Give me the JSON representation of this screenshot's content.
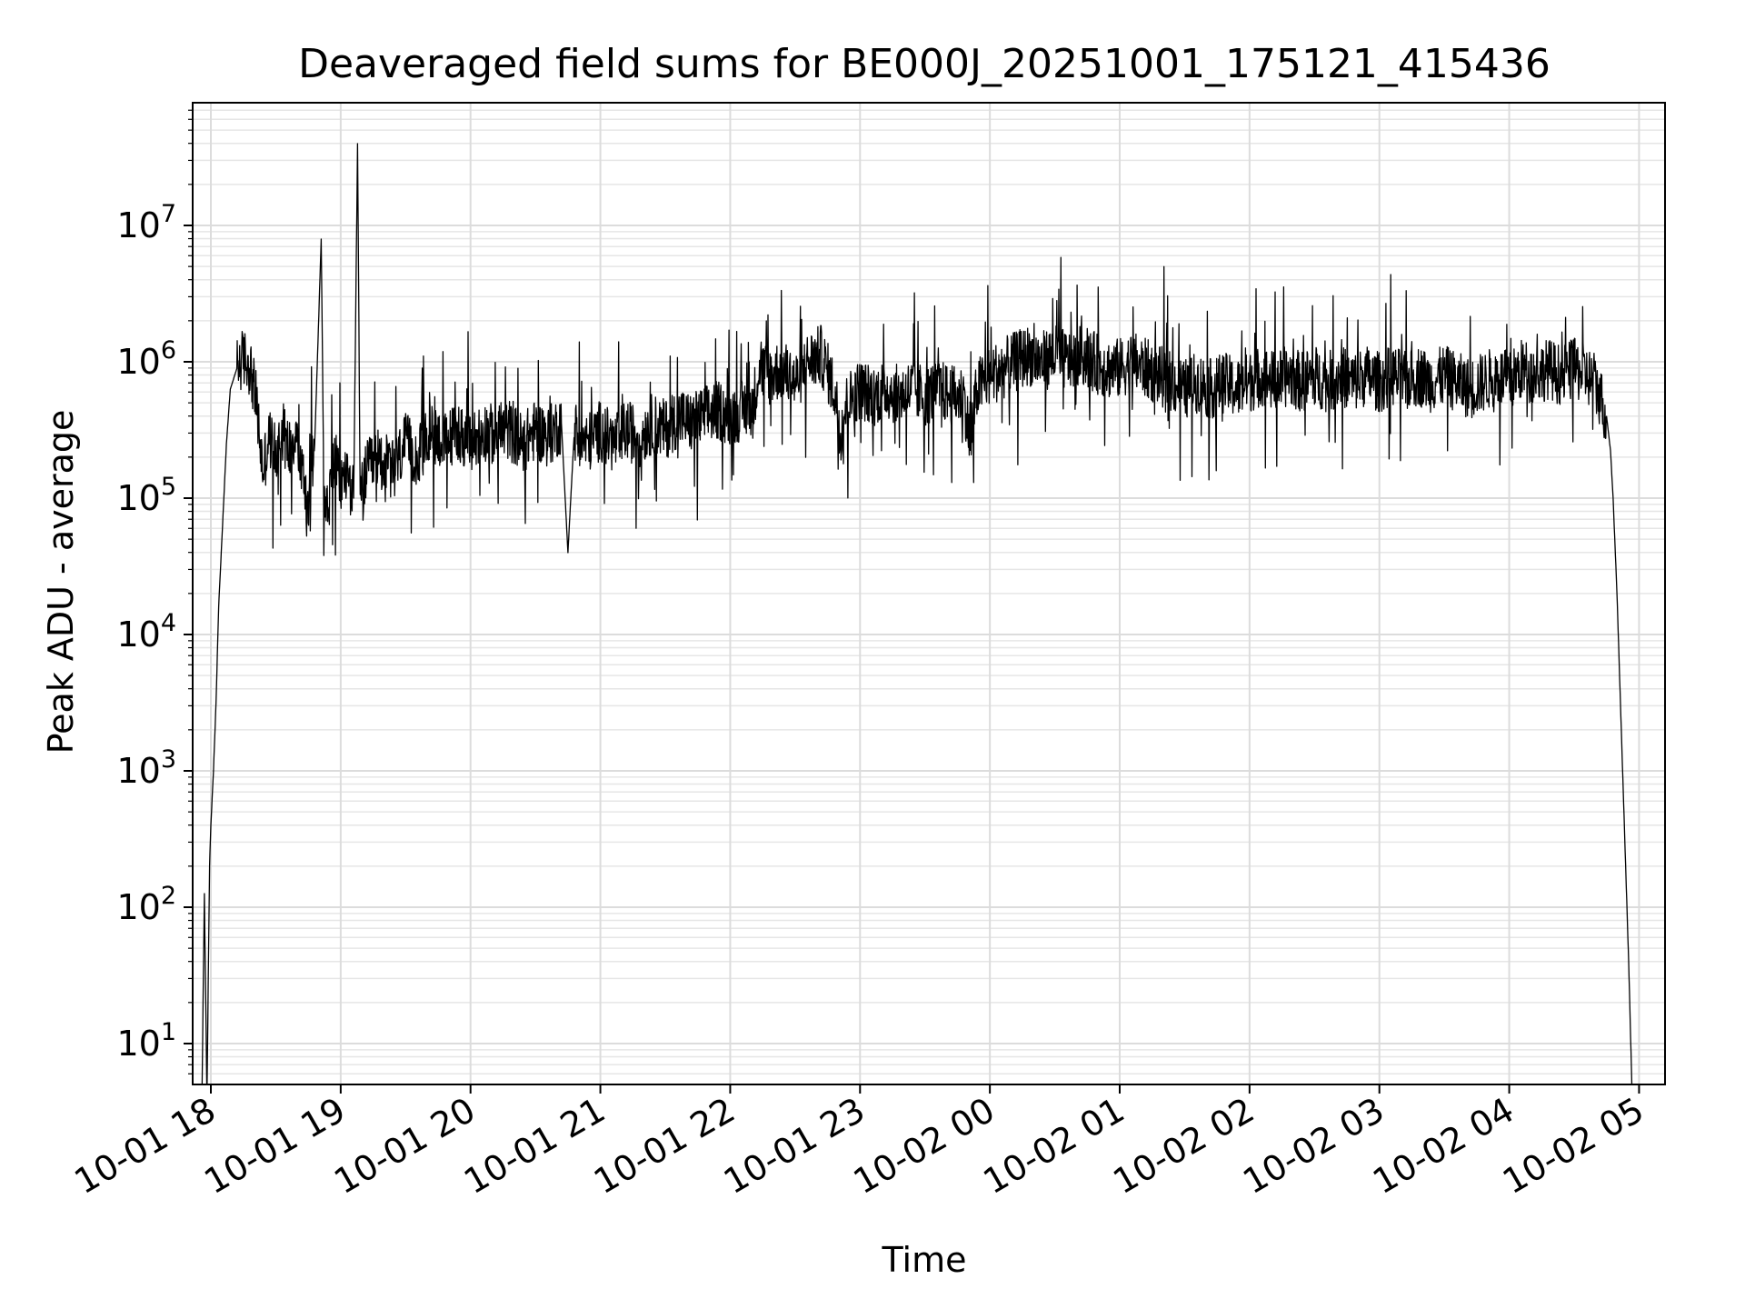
{
  "chart_data": {
    "type": "line",
    "title": "Deaveraged field sums for BE000J_20251001_175121_415436",
    "xlabel": "Time",
    "ylabel": "Peak ADU - average",
    "yscale": "log",
    "ylim_exponent": [
      0.7,
      7.9
    ],
    "xlim_hours": [
      17.86,
      29.2
    ],
    "grid": true,
    "x_ticks": [
      {
        "hour": 18,
        "label": "10-01 18"
      },
      {
        "hour": 19,
        "label": "10-01 19"
      },
      {
        "hour": 20,
        "label": "10-01 20"
      },
      {
        "hour": 21,
        "label": "10-01 21"
      },
      {
        "hour": 22,
        "label": "10-01 22"
      },
      {
        "hour": 23,
        "label": "10-01 23"
      },
      {
        "hour": 24,
        "label": "10-02 00"
      },
      {
        "hour": 25,
        "label": "10-02 01"
      },
      {
        "hour": 26,
        "label": "10-02 02"
      },
      {
        "hour": 27,
        "label": "10-02 03"
      },
      {
        "hour": 28,
        "label": "10-02 04"
      },
      {
        "hour": 29,
        "label": "10-02 05"
      }
    ],
    "y_ticks": [
      {
        "exp": 1,
        "base": "10",
        "sup": "1"
      },
      {
        "exp": 2,
        "base": "10",
        "sup": "2"
      },
      {
        "exp": 3,
        "base": "10",
        "sup": "3"
      },
      {
        "exp": 4,
        "base": "10",
        "sup": "4"
      },
      {
        "exp": 5,
        "base": "10",
        "sup": "5"
      },
      {
        "exp": 6,
        "base": "10",
        "sup": "6"
      },
      {
        "exp": 7,
        "base": "10",
        "sup": "7"
      }
    ],
    "series": [
      {
        "name": "field sums",
        "color": "#000000",
        "points_log10": [
          [
            17.93,
            0.5
          ],
          [
            17.95,
            2.1
          ],
          [
            17.97,
            0.6
          ],
          [
            17.99,
            2.3
          ],
          [
            18.0,
            2.6
          ],
          [
            18.02,
            3.0
          ],
          [
            18.04,
            3.5
          ],
          [
            18.06,
            4.2
          ],
          [
            18.08,
            4.6
          ],
          [
            18.1,
            5.0
          ],
          [
            18.12,
            5.4
          ],
          [
            18.15,
            5.8
          ],
          [
            18.2,
            5.95
          ],
          [
            18.25,
            6.03
          ],
          [
            18.3,
            5.98
          ],
          [
            18.35,
            5.7
          ],
          [
            18.4,
            5.2
          ],
          [
            18.45,
            5.45
          ],
          [
            18.5,
            5.3
          ],
          [
            18.55,
            5.5
          ],
          [
            18.6,
            5.35
          ],
          [
            18.65,
            5.5
          ],
          [
            18.7,
            5.2
          ],
          [
            18.75,
            5.0
          ],
          [
            18.8,
            5.4
          ],
          [
            18.85,
            6.9
          ],
          [
            18.87,
            5.1
          ],
          [
            18.9,
            4.9
          ],
          [
            18.95,
            5.3
          ],
          [
            19.0,
            5.1
          ],
          [
            19.05,
            5.2
          ],
          [
            19.1,
            5.0
          ],
          [
            19.13,
            7.6
          ],
          [
            19.15,
            5.0
          ],
          [
            19.2,
            5.2
          ],
          [
            19.3,
            5.3
          ],
          [
            19.4,
            5.2
          ],
          [
            19.5,
            5.4
          ],
          [
            19.6,
            5.3
          ],
          [
            19.7,
            5.5
          ],
          [
            19.8,
            5.4
          ],
          [
            19.9,
            5.5
          ],
          [
            20.0,
            5.4
          ],
          [
            20.1,
            5.5
          ],
          [
            20.2,
            5.45
          ],
          [
            20.3,
            5.5
          ],
          [
            20.4,
            5.4
          ],
          [
            20.5,
            5.5
          ],
          [
            20.6,
            5.45
          ],
          [
            20.7,
            5.55
          ],
          [
            20.75,
            4.6
          ],
          [
            20.8,
            5.5
          ],
          [
            20.9,
            5.4
          ],
          [
            21.0,
            5.5
          ],
          [
            21.1,
            5.4
          ],
          [
            21.2,
            5.5
          ],
          [
            21.3,
            5.45
          ],
          [
            21.4,
            5.55
          ],
          [
            21.5,
            5.5
          ],
          [
            21.6,
            5.6
          ],
          [
            21.7,
            5.55
          ],
          [
            21.8,
            5.6
          ],
          [
            21.9,
            5.65
          ],
          [
            22.0,
            5.6
          ],
          [
            22.1,
            5.65
          ],
          [
            22.18,
            5.7
          ],
          [
            22.22,
            5.95
          ],
          [
            22.3,
            5.9
          ],
          [
            22.4,
            5.95
          ],
          [
            22.5,
            5.85
          ],
          [
            22.6,
            6.0
          ],
          [
            22.7,
            6.05
          ],
          [
            22.8,
            5.8
          ],
          [
            22.85,
            5.5
          ],
          [
            22.9,
            5.7
          ],
          [
            23.0,
            5.8
          ],
          [
            23.1,
            5.75
          ],
          [
            23.2,
            5.8
          ],
          [
            23.3,
            5.75
          ],
          [
            23.4,
            5.8
          ],
          [
            23.5,
            5.75
          ],
          [
            23.6,
            5.8
          ],
          [
            23.7,
            5.75
          ],
          [
            23.8,
            5.75
          ],
          [
            23.85,
            5.4
          ],
          [
            23.9,
            5.8
          ],
          [
            24.0,
            5.9
          ],
          [
            24.1,
            5.95
          ],
          [
            24.2,
            6.0
          ],
          [
            24.3,
            6.05
          ],
          [
            24.4,
            6.0
          ],
          [
            24.5,
            6.05
          ],
          [
            24.6,
            6.0
          ],
          [
            24.7,
            6.05
          ],
          [
            24.8,
            6.0
          ],
          [
            24.9,
            5.95
          ],
          [
            25.0,
            5.95
          ],
          [
            25.1,
            6.0
          ],
          [
            25.2,
            5.95
          ],
          [
            25.3,
            5.9
          ],
          [
            25.4,
            5.85
          ],
          [
            25.5,
            5.8
          ],
          [
            25.6,
            5.85
          ],
          [
            25.7,
            5.8
          ],
          [
            25.8,
            5.85
          ],
          [
            25.9,
            5.8
          ],
          [
            26.0,
            5.85
          ],
          [
            26.1,
            5.9
          ],
          [
            26.2,
            5.85
          ],
          [
            26.3,
            5.9
          ],
          [
            26.4,
            5.85
          ],
          [
            26.5,
            5.9
          ],
          [
            26.6,
            5.85
          ],
          [
            26.7,
            5.9
          ],
          [
            26.8,
            5.85
          ],
          [
            26.9,
            5.9
          ],
          [
            27.0,
            5.85
          ],
          [
            27.1,
            5.9
          ],
          [
            27.2,
            5.85
          ],
          [
            27.3,
            5.9
          ],
          [
            27.4,
            5.85
          ],
          [
            27.5,
            5.9
          ],
          [
            27.6,
            5.85
          ],
          [
            27.7,
            5.8
          ],
          [
            27.8,
            5.85
          ],
          [
            27.9,
            5.9
          ],
          [
            28.0,
            5.85
          ],
          [
            28.1,
            5.95
          ],
          [
            28.2,
            5.9
          ],
          [
            28.3,
            5.95
          ],
          [
            28.4,
            5.9
          ],
          [
            28.5,
            5.95
          ],
          [
            28.6,
            5.9
          ],
          [
            28.65,
            5.85
          ],
          [
            28.7,
            5.75
          ],
          [
            28.75,
            5.6
          ],
          [
            28.78,
            5.35
          ],
          [
            28.8,
            5.0
          ],
          [
            28.83,
            4.3
          ],
          [
            28.86,
            3.4
          ],
          [
            28.89,
            2.5
          ],
          [
            28.92,
            1.6
          ],
          [
            28.95,
            0.5
          ]
        ]
      }
    ]
  }
}
